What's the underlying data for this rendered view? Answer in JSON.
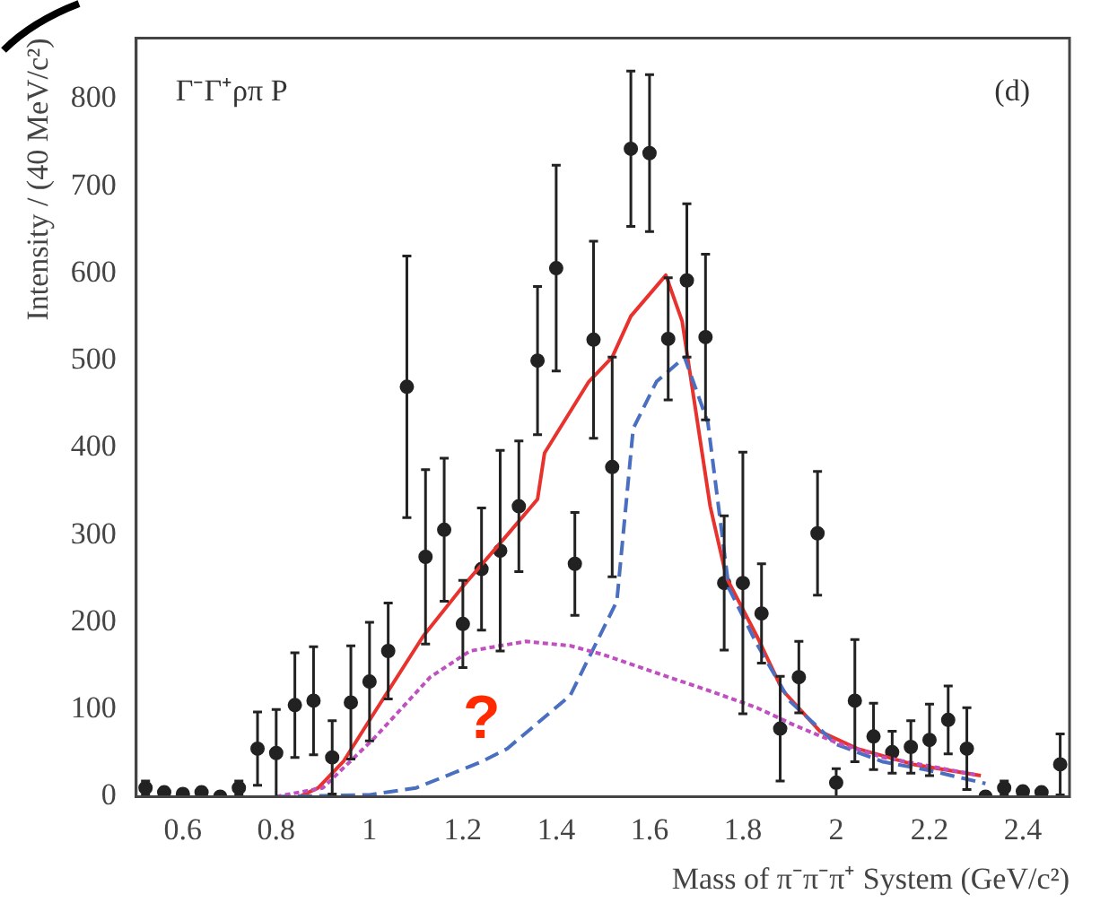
{
  "chart_data": {
    "type": "scatter",
    "title": "Γ⁻Γ⁺ρπ P",
    "xlabel": "Mass of π⁻π⁻π⁺ System (GeV/c²)",
    "ylabel": "Intensity / (40 MeV/c²)",
    "xlim": [
      0.5,
      2.5
    ],
    "ylim": [
      0,
      870
    ],
    "xticks": [
      0.6,
      0.8,
      1,
      1.2,
      1.4,
      1.6,
      1.8,
      2,
      2.2,
      2.4
    ],
    "yticks": [
      0,
      100,
      200,
      300,
      400,
      500,
      600,
      700,
      800
    ],
    "grid": false,
    "legend": false,
    "annotations": [
      "(d)",
      "?"
    ],
    "series": [
      {
        "type": "scatter",
        "color": "#222222",
        "x": [
          0.52,
          0.56,
          0.6,
          0.64,
          0.68,
          0.72,
          0.76,
          0.8,
          0.84,
          0.88,
          0.92,
          0.96,
          1.0,
          1.04,
          1.08,
          1.12,
          1.16,
          1.2,
          1.24,
          1.28,
          1.32,
          1.36,
          1.4,
          1.44,
          1.48,
          1.52,
          1.56,
          1.6,
          1.64,
          1.68,
          1.72,
          1.76,
          1.8,
          1.84,
          1.88,
          1.92,
          1.96,
          2.0,
          2.04,
          2.08,
          2.12,
          2.16,
          2.2,
          2.24,
          2.28,
          2.32,
          2.36,
          2.4,
          2.44,
          2.48
        ],
        "values": [
          10,
          5,
          3,
          5,
          0,
          10,
          55,
          50,
          105,
          110,
          45,
          108,
          132,
          167,
          470,
          275,
          306,
          198,
          261,
          282,
          333,
          500,
          606,
          267,
          524,
          378,
          743,
          738,
          525,
          592,
          527,
          245,
          245,
          210,
          78,
          137,
          302,
          16,
          110,
          69,
          51,
          57,
          65,
          88,
          55,
          0,
          10,
          6,
          5,
          37
        ],
        "errors": [
          8,
          5,
          null,
          5,
          null,
          8,
          42,
          50,
          60,
          62,
          42,
          65,
          68,
          55,
          150,
          100,
          82,
          50,
          70,
          115,
          75,
          85,
          118,
          59,
          113,
          126,
          89,
          90,
          70,
          88,
          95,
          77,
          150,
          57,
          60,
          41,
          71,
          16,
          70,
          38,
          24,
          30,
          41,
          39,
          47,
          null,
          8,
          5,
          null,
          35
        ]
      },
      {
        "type": "line",
        "color": "#e8322e",
        "line_style": "solid",
        "marker": "none",
        "x": [
          0.85,
          0.89,
          0.945,
          1.01,
          1.115,
          1.2,
          1.295,
          1.36,
          1.375,
          1.47,
          1.52,
          1.56,
          1.635,
          1.67,
          1.73,
          1.765,
          1.83,
          1.885,
          1.965,
          2.045,
          2.165,
          2.31
        ],
        "values": [
          0,
          10,
          41,
          96,
          184,
          241,
          300,
          341,
          394,
          476,
          504,
          551,
          598,
          545,
          333,
          251,
          184,
          122,
          75,
          55,
          37,
          24
        ]
      },
      {
        "type": "line",
        "color": "#4a6fc0",
        "line_style": "dashed",
        "marker": "none",
        "x": [
          0.8,
          1.0,
          1.1,
          1.24,
          1.295,
          1.43,
          1.53,
          1.565,
          1.615,
          1.675,
          1.725,
          1.77,
          1.83,
          1.9,
          2.0,
          2.1,
          2.2,
          2.32
        ],
        "values": [
          0,
          2,
          10,
          40,
          55,
          116,
          224,
          422,
          476,
          504,
          429,
          239,
          175,
          110,
          60,
          40,
          30,
          15
        ]
      },
      {
        "type": "line",
        "color": "#c050c0",
        "line_style": "dotted",
        "marker": "none",
        "x": [
          0.8,
          0.9,
          1.01,
          1.13,
          1.215,
          1.335,
          1.43,
          1.5,
          1.63,
          1.725,
          1.83,
          1.91,
          2.0,
          2.1,
          2.3
        ],
        "values": [
          0,
          10,
          67,
          137,
          167,
          178,
          173,
          163,
          139,
          122,
          102,
          82,
          62,
          45,
          25
        ]
      }
    ]
  }
}
